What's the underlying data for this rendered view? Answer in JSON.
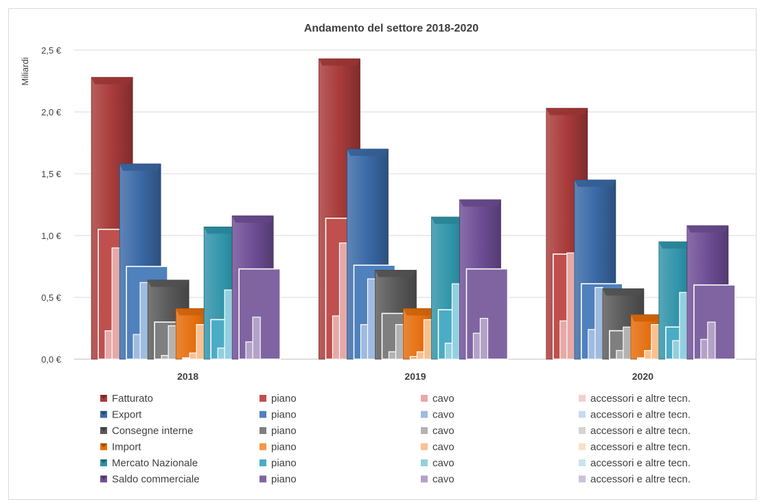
{
  "chart_data": {
    "type": "bar",
    "title": "Andamento del settore 2018-2020",
    "ylabel": "Miliardi",
    "xlabel": "",
    "ylim": [
      0,
      2.5
    ],
    "yticks": [
      0,
      0.5,
      1.0,
      1.5,
      2.0,
      2.5
    ],
    "ytick_labels": [
      "0,0 €",
      "0,5 €",
      "1,0 €",
      "1,5 €",
      "2,0 €",
      "2,5 €"
    ],
    "categories": [
      "2018",
      "2019",
      "2020"
    ],
    "grid": true,
    "legend_position": "bottom",
    "groups": [
      {
        "name": "Fatturato",
        "color": "#a93b3a",
        "sub_labels": [
          "piano",
          "cavo",
          "accessori e altre tecn."
        ],
        "sub_colors": [
          "#c0504d",
          "#e6a9a7",
          "#f2cfcd"
        ],
        "total": [
          2.28,
          2.43,
          2.03
        ],
        "piano": [
          1.05,
          1.14,
          0.85
        ],
        "cavo": [
          0.23,
          0.35,
          0.31
        ],
        "accessori": [
          0.9,
          0.94,
          0.86
        ]
      },
      {
        "name": "Export",
        "color": "#3b6aa7",
        "sub_labels": [
          "piano",
          "cavo",
          "accessori e altre tecn."
        ],
        "sub_colors": [
          "#4f81bd",
          "#9fbbe0",
          "#c9daef"
        ],
        "total": [
          1.58,
          1.7,
          1.45
        ],
        "piano": [
          0.75,
          0.76,
          0.61
        ],
        "cavo": [
          0.2,
          0.28,
          0.24
        ],
        "accessori": [
          0.62,
          0.65,
          0.58
        ]
      },
      {
        "name": "Consegne interne",
        "color": "#5a5a5a",
        "sub_labels": [
          "piano",
          "cavo",
          "accessori e altre tecn."
        ],
        "sub_colors": [
          "#7f7f7f",
          "#b3b3b3",
          "#d4d4d4"
        ],
        "total": [
          0.64,
          0.72,
          0.57
        ],
        "piano": [
          0.3,
          0.37,
          0.23
        ],
        "cavo": [
          0.03,
          0.06,
          0.07
        ],
        "accessori": [
          0.27,
          0.28,
          0.26
        ]
      },
      {
        "name": "Import",
        "color": "#e46c0a",
        "sub_labels": [
          "piano",
          "cavo",
          "accessori e altre tecn."
        ],
        "sub_colors": [
          "#f79646",
          "#fbc08f",
          "#fde0c5"
        ],
        "total": [
          0.41,
          0.41,
          0.36
        ],
        "piano": [
          0.01,
          0.02,
          0.01
        ],
        "cavo": [
          0.05,
          0.06,
          0.07
        ],
        "accessori": [
          0.28,
          0.32,
          0.28
        ]
      },
      {
        "name": "Mercato Nazionale",
        "color": "#2e93a8",
        "sub_labels": [
          "piano",
          "cavo",
          "accessori e altre tecn."
        ],
        "sub_colors": [
          "#4bacc6",
          "#92d0df",
          "#c5e6ee"
        ],
        "total": [
          1.07,
          1.15,
          0.95
        ],
        "piano": [
          0.32,
          0.4,
          0.26
        ],
        "cavo": [
          0.09,
          0.13,
          0.15
        ],
        "accessori": [
          0.56,
          0.61,
          0.54
        ]
      },
      {
        "name": "Saldo commerciale",
        "color": "#6f4e96",
        "sub_labels": [
          "piano",
          "cavo",
          "accessori e altre tecn."
        ],
        "sub_colors": [
          "#8064a2",
          "#b3a2c7",
          "#ccc1da"
        ],
        "total": [
          1.16,
          1.29,
          1.08
        ],
        "piano": [
          0.73,
          0.73,
          0.6
        ],
        "cavo": [
          0.14,
          0.21,
          0.16
        ],
        "accessori": [
          0.34,
          0.33,
          0.3
        ]
      }
    ]
  }
}
